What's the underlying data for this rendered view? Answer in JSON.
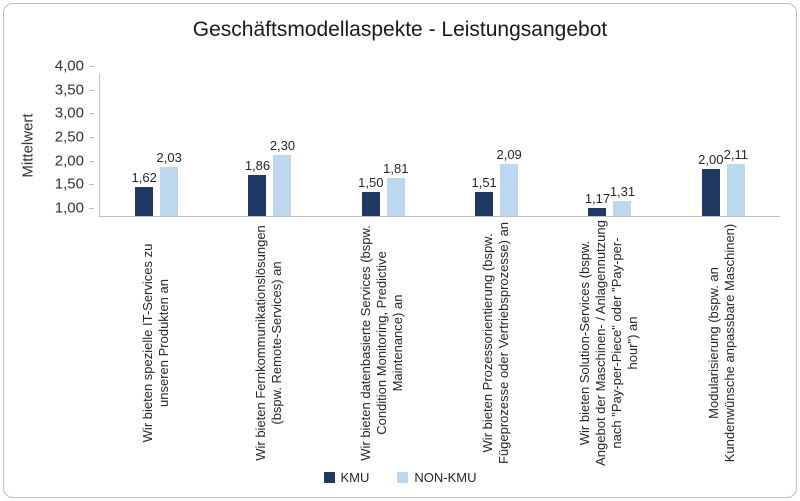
{
  "chart_data": {
    "type": "bar",
    "title": "Geschäftsmodellaspekte - Leistungsangebot",
    "ylabel": "Mittelwert",
    "xlabel": "",
    "ylim": [
      1.0,
      4.0
    ],
    "grid": false,
    "legend_position": "bottom",
    "yticks": [
      "4,00",
      "3,50",
      "3,00",
      "2,50",
      "2,00",
      "1,50",
      "1,00"
    ],
    "categories": [
      "Wir bieten spezielle IT-Services zu unseren Produkten an",
      "Wir bieten Fernkommunikationslösungen (bspw. Remote-Services) an",
      "Wir bieten datenbasierte Services (bspw. Condition Monitoring, Predictive Maintenance) an",
      "Wir bieten Prozessorientierung (bspw. Fügeprozesse oder Vertriebsprozesse) an",
      "Wir bieten Solution-Services (bspw. Angebot der Maschinen- / Anlagennutzung nach \"Pay-per-Piece\" oder \"Pay-per-hour\") an",
      "Modularisierung (bspw. an Kundenwünsche anpassbare Maschinen)"
    ],
    "series": [
      {
        "name": "KMU",
        "color": "#1f3864",
        "values": [
          1.62,
          1.86,
          1.5,
          1.51,
          1.17,
          2.0
        ],
        "labels": [
          "1,62",
          "1,86",
          "1,50",
          "1,51",
          "1,17",
          "2,00"
        ]
      },
      {
        "name": "NON-KMU",
        "color": "#bdd7ee",
        "values": [
          2.03,
          2.3,
          1.81,
          2.09,
          1.31,
          2.11
        ],
        "labels": [
          "2,03",
          "2,30",
          "1,81",
          "2,09",
          "1,31",
          "2,11"
        ]
      }
    ]
  },
  "colors": {
    "axis": "#bfbfbf",
    "text": "#262626"
  }
}
